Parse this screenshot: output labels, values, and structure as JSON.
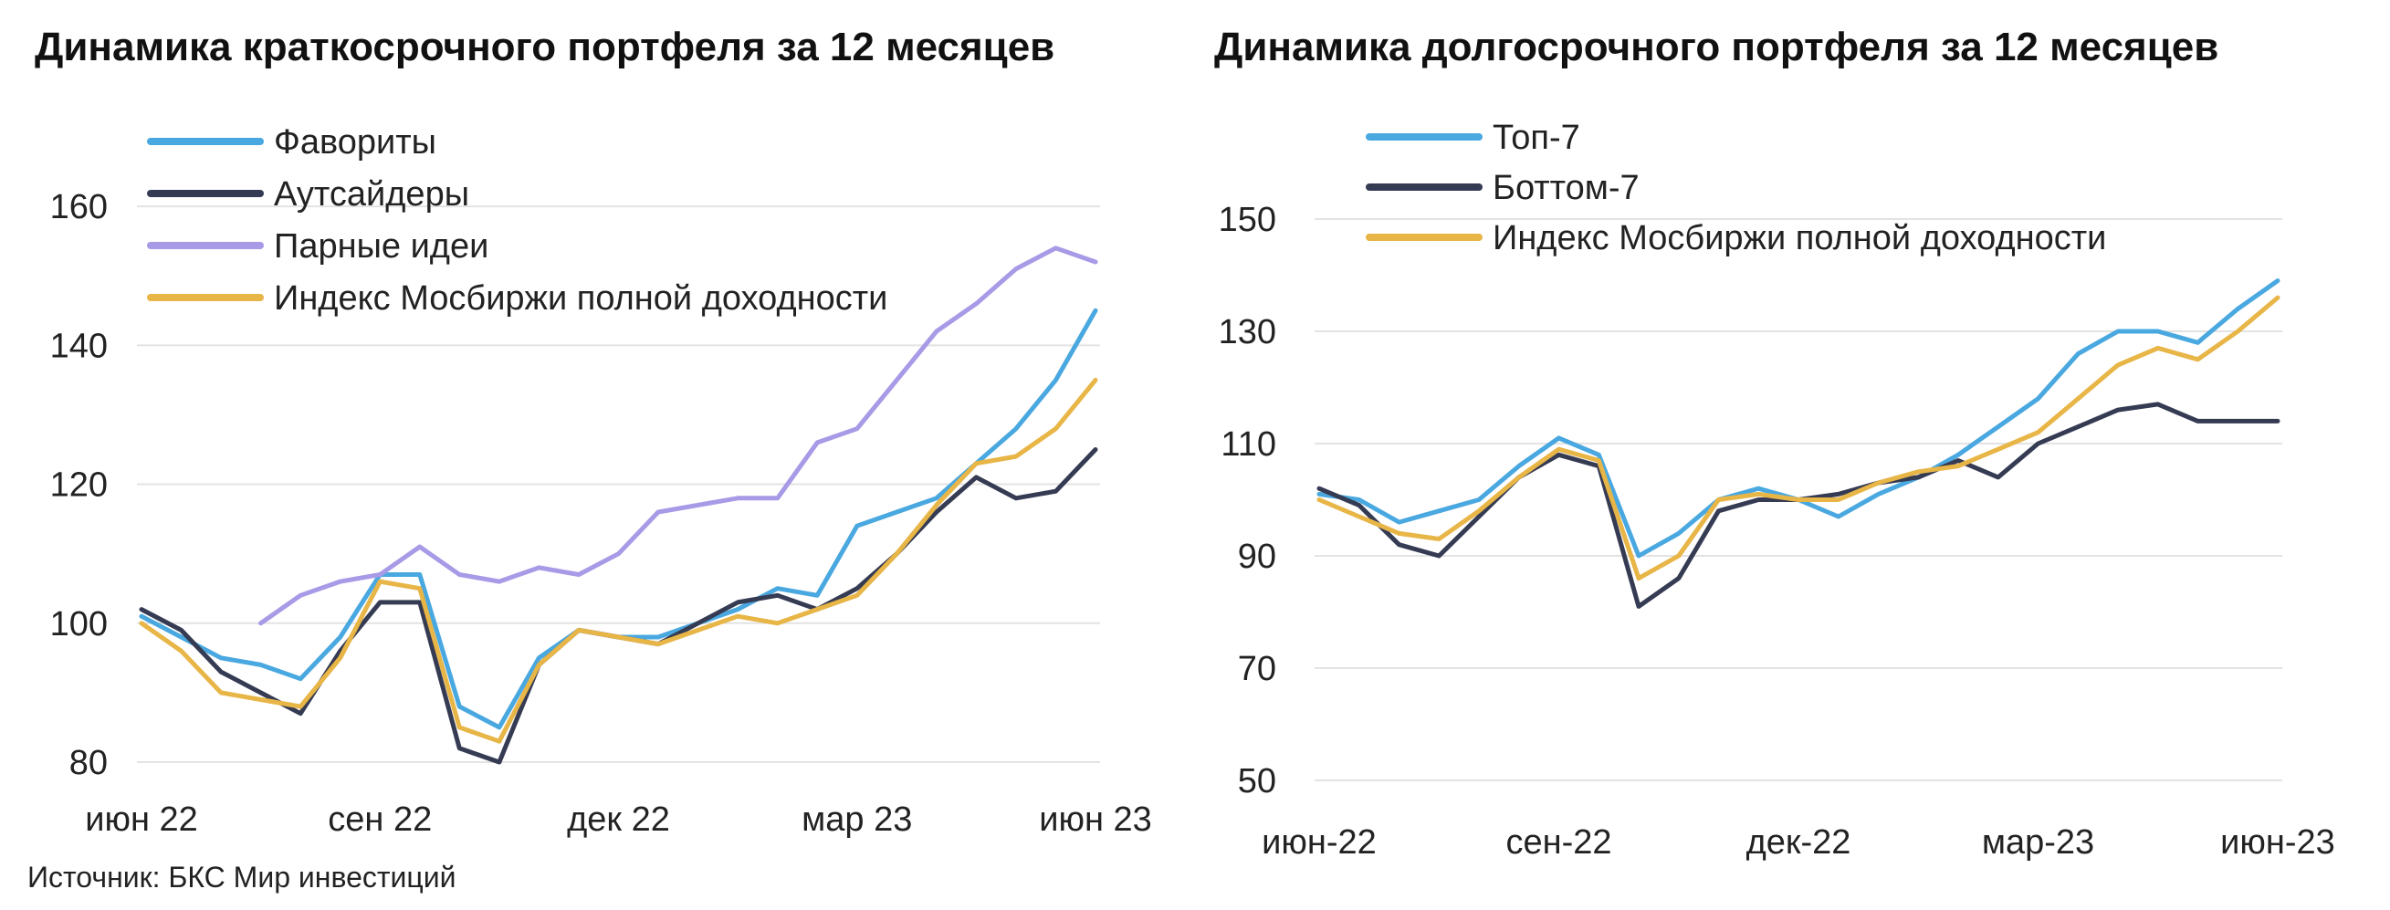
{
  "chart_data": [
    {
      "type": "line",
      "title": "Динамика краткосрочного портфеля за 12 месяцев",
      "source": "Источник: БКС Мир инвестиций",
      "x_labels": [
        "июн 22",
        "сен 22",
        "дек 22",
        "мар 23",
        "июн 23"
      ],
      "y_ticks": [
        "80",
        "100",
        "120",
        "140",
        "160"
      ],
      "ylim": [
        80,
        170
      ],
      "legend_position": "top-left",
      "grid": true,
      "x_months": [
        0,
        0.5,
        1,
        1.5,
        2,
        2.5,
        3,
        3.5,
        4,
        4.5,
        5,
        5.5,
        6,
        6.5,
        7,
        7.5,
        8,
        8.5,
        9,
        9.5,
        10,
        10.5,
        11,
        11.5,
        12
      ],
      "series": [
        {
          "name": "Фавориты",
          "color": "#4aa8e0",
          "start": 0,
          "values": [
            101,
            98,
            95,
            94,
            92,
            98,
            107,
            107,
            88,
            85,
            95,
            99,
            98,
            98,
            100,
            102,
            105,
            104,
            114,
            116,
            118,
            123,
            128,
            135,
            145
          ]
        },
        {
          "name": "Аутсайдеры",
          "color": "#353b52",
          "start": 0,
          "values": [
            102,
            99,
            93,
            90,
            87,
            96,
            103,
            103,
            82,
            80,
            94,
            99,
            98,
            97,
            100,
            103,
            104,
            102,
            105,
            110,
            116,
            121,
            118,
            119,
            125
          ]
        },
        {
          "name": "Парные идеи",
          "color": "#a89ae6",
          "start": 3,
          "values": [
            100,
            104,
            106,
            107,
            111,
            107,
            106,
            108,
            107,
            110,
            116,
            117,
            118,
            118,
            126,
            128,
            135,
            142,
            146,
            151,
            154,
            152
          ]
        },
        {
          "name": "Индекс Мосбиржи полной доходности",
          "color": "#e8b547",
          "start": 0,
          "values": [
            100,
            96,
            90,
            89,
            88,
            95,
            106,
            105,
            85,
            83,
            94,
            99,
            98,
            97,
            99,
            101,
            100,
            102,
            104,
            110,
            117,
            123,
            124,
            128,
            135
          ]
        }
      ]
    },
    {
      "type": "line",
      "title": "Динамика долгосрочного портфеля за 12 месяцев",
      "x_labels": [
        "июн-22",
        "сен-22",
        "дек-22",
        "мар-23",
        "июн-23"
      ],
      "y_ticks": [
        "50",
        "70",
        "90",
        "110",
        "130",
        "150"
      ],
      "ylim": [
        50,
        150
      ],
      "legend_position": "top-left",
      "grid": true,
      "x_months": [
        0,
        0.5,
        1,
        1.5,
        2,
        2.5,
        3,
        3.5,
        4,
        4.5,
        5,
        5.5,
        6,
        6.5,
        7,
        7.5,
        8,
        8.5,
        9,
        9.5,
        10,
        10.5,
        11,
        11.5,
        12
      ],
      "series": [
        {
          "name": "Топ-7",
          "color": "#4aa8e0",
          "start": 0,
          "values": [
            101,
            100,
            96,
            98,
            100,
            106,
            111,
            108,
            90,
            94,
            100,
            102,
            100,
            97,
            101,
            104,
            108,
            113,
            118,
            126,
            130,
            130,
            128,
            134,
            139
          ]
        },
        {
          "name": "Боттом-7",
          "color": "#353b52",
          "start": 0,
          "values": [
            102,
            99,
            92,
            90,
            97,
            104,
            108,
            106,
            81,
            86,
            98,
            100,
            100,
            101,
            103,
            104,
            107,
            104,
            110,
            113,
            116,
            117,
            114,
            114,
            114
          ]
        },
        {
          "name": "Индекс Мосбиржи полной доходности",
          "color": "#e8b547",
          "start": 0,
          "values": [
            100,
            97,
            94,
            93,
            98,
            104,
            109,
            107,
            86,
            90,
            100,
            101,
            100,
            100,
            103,
            105,
            106,
            109,
            112,
            118,
            124,
            127,
            125,
            130,
            136
          ]
        }
      ]
    }
  ]
}
